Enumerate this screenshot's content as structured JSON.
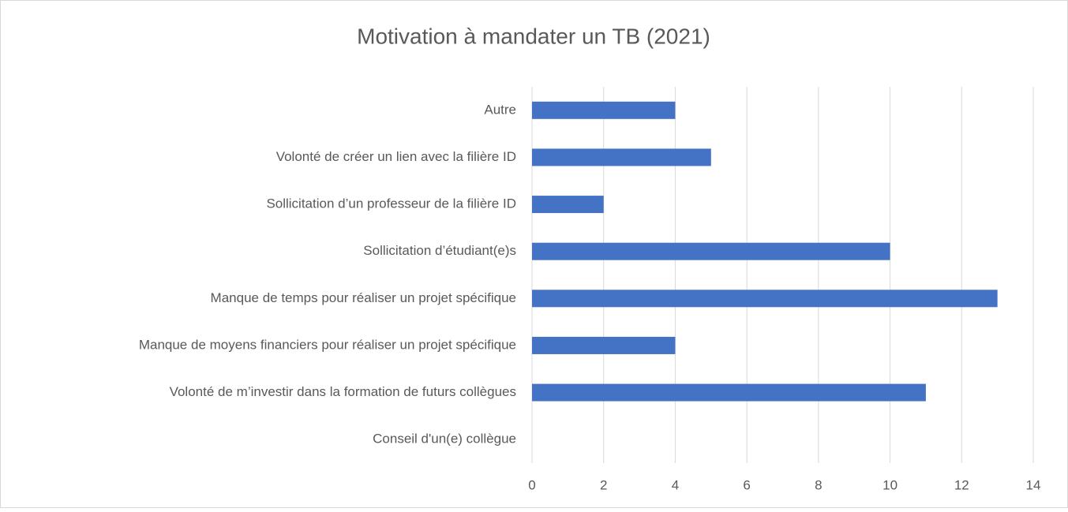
{
  "chart_data": {
    "type": "bar",
    "orientation": "horizontal",
    "title": "Motivation à mandater un TB (2021)",
    "categories": [
      "Autre",
      "Volonté de créer un lien avec la filière ID",
      "Sollicitation d’un professeur de la filière ID",
      "Sollicitation d’étudiant(e)s",
      "Manque de temps pour réaliser un projet spécifique",
      "Manque de moyens financiers pour réaliser un projet spécifique",
      "Volonté de m’investir dans la formation de futurs collègues",
      "Conseil d'un(e) collègue"
    ],
    "values": [
      4,
      5,
      2,
      10,
      13,
      4,
      11,
      0
    ],
    "color": "#4472c4",
    "xlim": [
      0,
      14
    ],
    "xticks": [
      0,
      2,
      4,
      6,
      8,
      10,
      12,
      14
    ],
    "grid": true
  }
}
